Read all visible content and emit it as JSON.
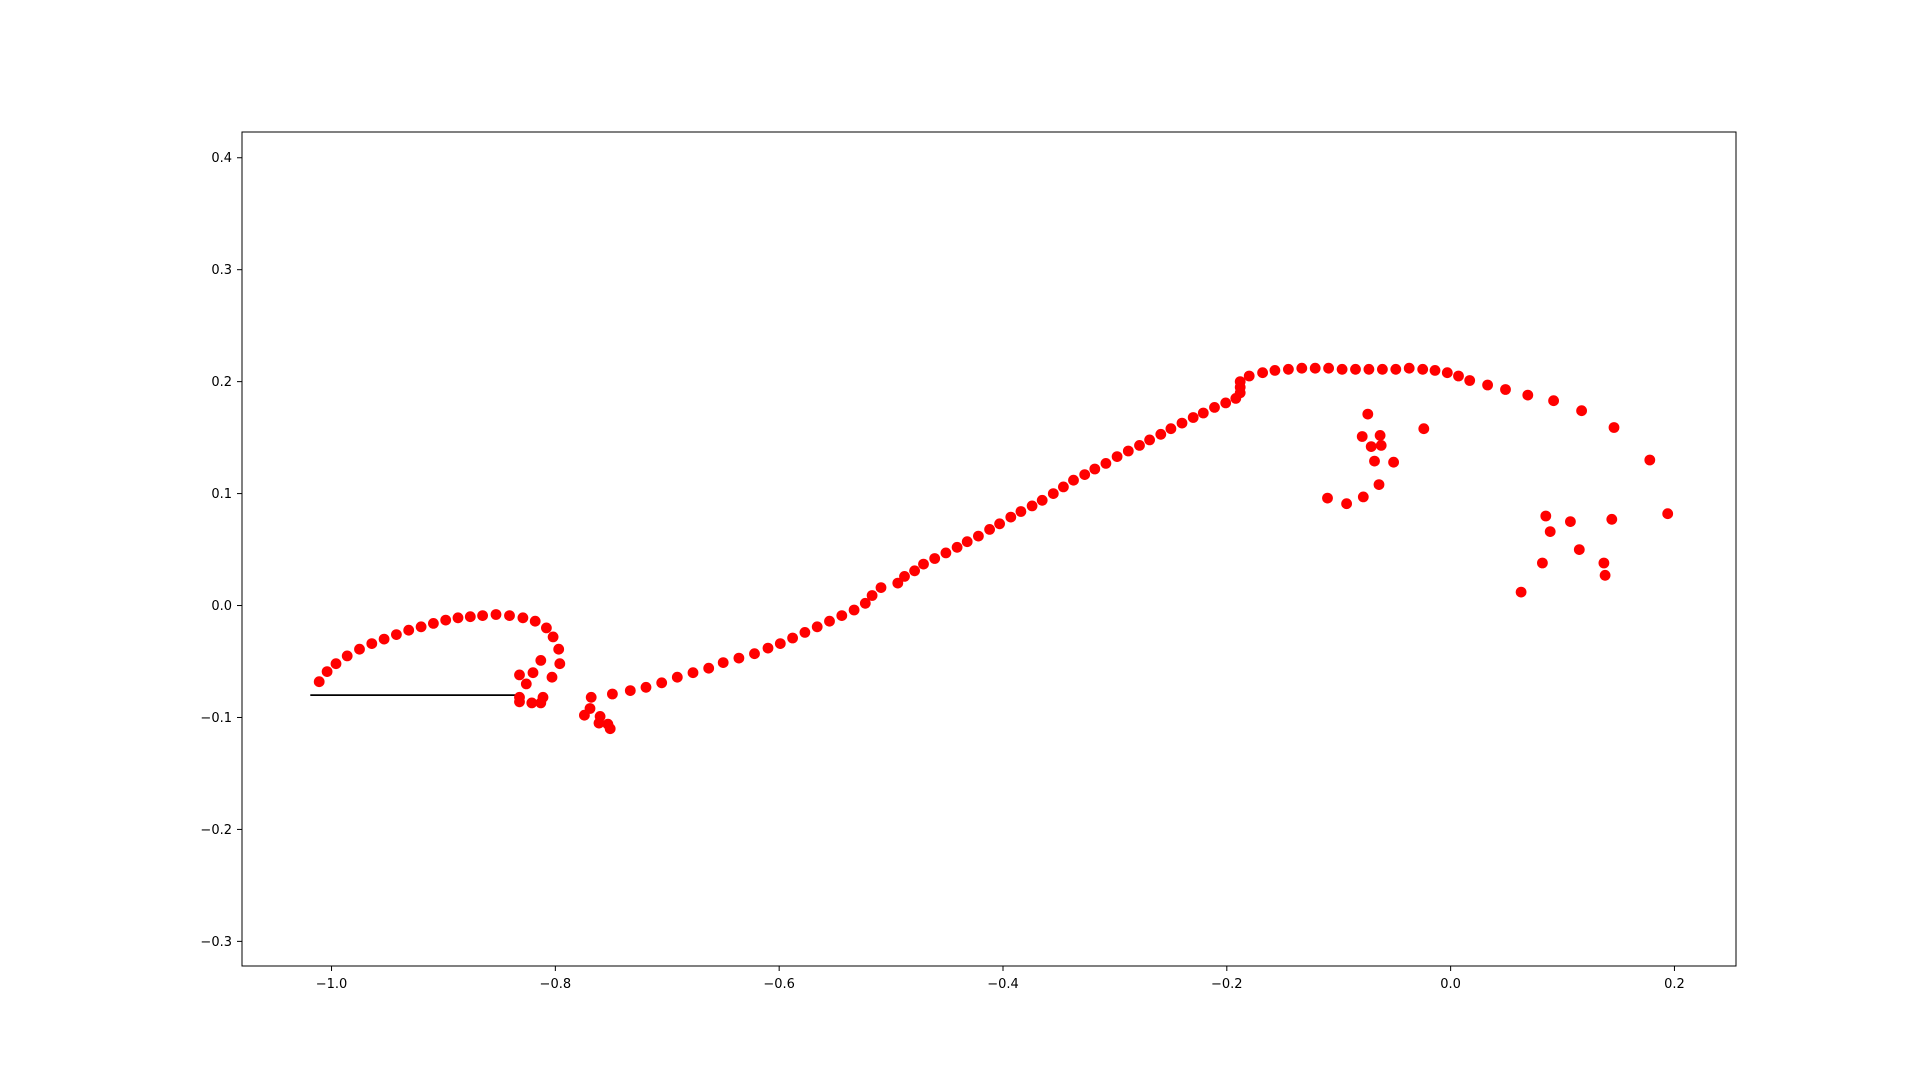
{
  "chart_data": {
    "type": "scatter",
    "title": "",
    "xlabel": "",
    "ylabel": "",
    "xlim": [
      -1.08,
      0.255
    ],
    "ylim": [
      -0.322,
      0.423
    ],
    "grid": false,
    "legend": "none",
    "x_ticks": [
      -1.0,
      -0.8,
      -0.6,
      -0.4,
      -0.2,
      0.0,
      0.2
    ],
    "x_tick_labels": [
      "−1.0",
      "−0.8",
      "−0.6",
      "−0.4",
      "−0.2",
      "0.0",
      "0.2"
    ],
    "y_ticks": [
      -0.3,
      -0.2,
      -0.1,
      0.0,
      0.1,
      0.2,
      0.3,
      0.4
    ],
    "y_tick_labels": [
      "−0.3",
      "−0.2",
      "−0.1",
      "0.0",
      "0.1",
      "0.2",
      "0.3",
      "0.4"
    ],
    "series": [
      {
        "color": "#ff0000",
        "marker": "circle",
        "points": [
          [
            -1.011,
            -0.068
          ],
          [
            -1.004,
            -0.059
          ],
          [
            -0.996,
            -0.052
          ],
          [
            -0.986,
            -0.045
          ],
          [
            -0.975,
            -0.039
          ],
          [
            -0.964,
            -0.034
          ],
          [
            -0.953,
            -0.03
          ],
          [
            -0.942,
            -0.026
          ],
          [
            -0.931,
            -0.022
          ],
          [
            -0.92,
            -0.019
          ],
          [
            -0.909,
            -0.016
          ],
          [
            -0.898,
            -0.013
          ],
          [
            -0.887,
            -0.011
          ],
          [
            -0.876,
            -0.01
          ],
          [
            -0.865,
            -0.009
          ],
          [
            -0.853,
            -0.008
          ],
          [
            -0.841,
            -0.009
          ],
          [
            -0.829,
            -0.011
          ],
          [
            -0.818,
            -0.014
          ],
          [
            -0.808,
            -0.02
          ],
          [
            -0.802,
            -0.028
          ],
          [
            -0.797,
            -0.039
          ],
          [
            -0.796,
            -0.052
          ],
          [
            -0.803,
            -0.064
          ],
          [
            -0.813,
            -0.049
          ],
          [
            -0.82,
            -0.06
          ],
          [
            -0.826,
            -0.07
          ],
          [
            -0.832,
            -0.062
          ],
          [
            -0.832,
            -0.082
          ],
          [
            -0.832,
            -0.086
          ],
          [
            -0.821,
            -0.087
          ],
          [
            -0.813,
            -0.087
          ],
          [
            -0.811,
            -0.082
          ],
          [
            -0.774,
            -0.098
          ],
          [
            -0.769,
            -0.092
          ],
          [
            -0.768,
            -0.082
          ],
          [
            -0.761,
            -0.105
          ],
          [
            -0.76,
            -0.099
          ],
          [
            -0.753,
            -0.106
          ],
          [
            -0.751,
            -0.11
          ],
          [
            -0.749,
            -0.079
          ],
          [
            -0.733,
            -0.076
          ],
          [
            -0.719,
            -0.073
          ],
          [
            -0.705,
            -0.069
          ],
          [
            -0.691,
            -0.064
          ],
          [
            -0.677,
            -0.06
          ],
          [
            -0.663,
            -0.056
          ],
          [
            -0.65,
            -0.051
          ],
          [
            -0.636,
            -0.047
          ],
          [
            -0.622,
            -0.043
          ],
          [
            -0.61,
            -0.038
          ],
          [
            -0.599,
            -0.034
          ],
          [
            -0.588,
            -0.029
          ],
          [
            -0.577,
            -0.024
          ],
          [
            -0.566,
            -0.019
          ],
          [
            -0.555,
            -0.014
          ],
          [
            -0.544,
            -0.009
          ],
          [
            -0.533,
            -0.004
          ],
          [
            -0.523,
            0.002
          ],
          [
            -0.517,
            0.009
          ],
          [
            -0.509,
            0.016
          ],
          [
            -0.494,
            0.02
          ],
          [
            -0.488,
            0.026
          ],
          [
            -0.479,
            0.031
          ],
          [
            -0.471,
            0.037
          ],
          [
            -0.461,
            0.042
          ],
          [
            -0.451,
            0.047
          ],
          [
            -0.441,
            0.052
          ],
          [
            -0.432,
            0.057
          ],
          [
            -0.422,
            0.062
          ],
          [
            -0.412,
            0.068
          ],
          [
            -0.403,
            0.073
          ],
          [
            -0.393,
            0.079
          ],
          [
            -0.384,
            0.084
          ],
          [
            -0.374,
            0.089
          ],
          [
            -0.365,
            0.094
          ],
          [
            -0.355,
            0.1
          ],
          [
            -0.346,
            0.106
          ],
          [
            -0.337,
            0.112
          ],
          [
            -0.327,
            0.117
          ],
          [
            -0.318,
            0.122
          ],
          [
            -0.308,
            0.127
          ],
          [
            -0.298,
            0.133
          ],
          [
            -0.288,
            0.138
          ],
          [
            -0.278,
            0.143
          ],
          [
            -0.269,
            0.148
          ],
          [
            -0.259,
            0.153
          ],
          [
            -0.25,
            0.158
          ],
          [
            -0.24,
            0.163
          ],
          [
            -0.23,
            0.168
          ],
          [
            -0.221,
            0.172
          ],
          [
            -0.211,
            0.177
          ],
          [
            -0.201,
            0.181
          ],
          [
            -0.192,
            0.185
          ],
          [
            -0.188,
            0.19
          ],
          [
            -0.188,
            0.195
          ],
          [
            -0.188,
            0.2
          ],
          [
            -0.18,
            0.205
          ],
          [
            -0.168,
            0.208
          ],
          [
            -0.157,
            0.21
          ],
          [
            -0.145,
            0.211
          ],
          [
            -0.133,
            0.212
          ],
          [
            -0.121,
            0.212
          ],
          [
            -0.109,
            0.212
          ],
          [
            -0.097,
            0.211
          ],
          [
            -0.085,
            0.211
          ],
          [
            -0.073,
            0.211
          ],
          [
            -0.061,
            0.211
          ],
          [
            -0.049,
            0.211
          ],
          [
            -0.037,
            0.212
          ],
          [
            -0.025,
            0.211
          ],
          [
            -0.014,
            0.21
          ],
          [
            -0.003,
            0.208
          ],
          [
            0.007,
            0.205
          ],
          [
            0.017,
            0.201
          ],
          [
            0.033,
            0.197
          ],
          [
            0.049,
            0.193
          ],
          [
            0.069,
            0.188
          ],
          [
            0.092,
            0.183
          ],
          [
            0.117,
            0.174
          ],
          [
            0.146,
            0.159
          ],
          [
            0.178,
            0.13
          ],
          [
            0.194,
            0.082
          ],
          [
            -0.11,
            0.096
          ],
          [
            -0.093,
            0.091
          ],
          [
            -0.078,
            0.097
          ],
          [
            -0.079,
            0.151
          ],
          [
            -0.074,
            0.171
          ],
          [
            -0.071,
            0.142
          ],
          [
            -0.068,
            0.129
          ],
          [
            -0.064,
            0.108
          ],
          [
            -0.063,
            0.152
          ],
          [
            -0.062,
            0.143
          ],
          [
            -0.051,
            0.128
          ],
          [
            -0.024,
            0.158
          ],
          [
            0.063,
            0.012
          ],
          [
            0.082,
            0.038
          ],
          [
            0.085,
            0.08
          ],
          [
            0.089,
            0.066
          ],
          [
            0.107,
            0.075
          ],
          [
            0.115,
            0.05
          ],
          [
            0.137,
            0.038
          ],
          [
            0.138,
            0.027
          ],
          [
            0.144,
            0.077
          ]
        ]
      }
    ],
    "lines": [
      {
        "color": "#000000",
        "points": [
          [
            -1.019,
            -0.08
          ],
          [
            -0.832,
            -0.08
          ]
        ]
      }
    ]
  }
}
